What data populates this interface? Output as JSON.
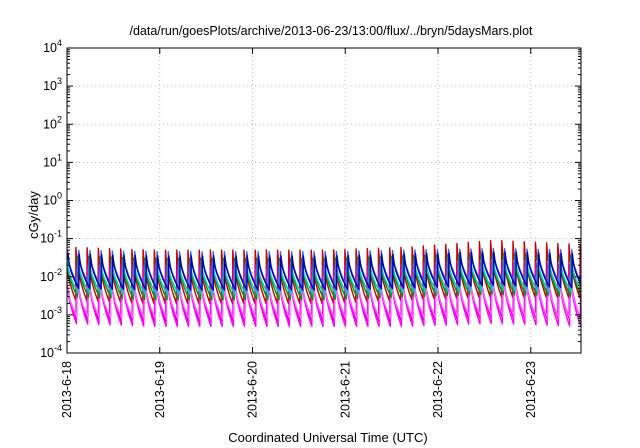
{
  "chart_data": {
    "type": "line",
    "title": "/data/run/goesPlots/archive/2013-06-23/13:00/flux/../bryn/5daysMars.plot",
    "xlabel": "Coordinated Universal Time (UTC)",
    "ylabel": "cGy/day",
    "yscale": "log",
    "ylim": [
      0.0001,
      10000
    ],
    "xlim": [
      "2013-06-18 00:00",
      "2013-06-23 13:00"
    ],
    "grid": true,
    "x_ticks": [
      "2013-6-18",
      "2013-6-19",
      "2013-6-20",
      "2013-6-21",
      "2013-6-22",
      "2013-6-23"
    ],
    "y_ticks": [
      {
        "base": "10",
        "exp": "-4",
        "value": 0.0001
      },
      {
        "base": "10",
        "exp": "-3",
        "value": 0.001
      },
      {
        "base": "10",
        "exp": "-2",
        "value": 0.01
      },
      {
        "base": "10",
        "exp": "-1",
        "value": 0.1
      },
      {
        "base": "10",
        "exp": "0",
        "value": 1
      },
      {
        "base": "10",
        "exp": "1",
        "value": 10
      },
      {
        "base": "10",
        "exp": "2",
        "value": 100
      },
      {
        "base": "10",
        "exp": "3",
        "value": 1000
      },
      {
        "base": "10",
        "exp": "4",
        "value": 10000
      }
    ],
    "sawtooth_period_hours": 2.9,
    "series": [
      {
        "color": "#cc0000",
        "peak": [
          0.06,
          0.05,
          0.05,
          0.05,
          0.06,
          0.09,
          0.07
        ],
        "trough": [
          0.0025,
          0.002,
          0.002,
          0.002,
          0.0025,
          0.003,
          0.0028
        ]
      },
      {
        "color": "#cc00cc",
        "peak": [
          0.02,
          0.02,
          0.02,
          0.02,
          0.02,
          0.025,
          0.02
        ],
        "trough": [
          0.0008,
          0.0007,
          0.0007,
          0.0007,
          0.0007,
          0.0009,
          0.0008
        ]
      },
      {
        "color": "#ff00ff",
        "peak": [
          0.015,
          0.015,
          0.015,
          0.015,
          0.015,
          0.02,
          0.015
        ],
        "trough": [
          0.0006,
          0.0005,
          0.0005,
          0.0005,
          0.0005,
          0.0006,
          0.0005
        ]
      },
      {
        "color": "#ff66ff",
        "peak": [
          0.01,
          0.01,
          0.01,
          0.01,
          0.01,
          0.012,
          0.01
        ],
        "trough": [
          0.0009,
          0.0008,
          0.0008,
          0.0008,
          0.0008,
          0.001,
          0.0008
        ]
      },
      {
        "color": "#009900",
        "peak": [
          0.035,
          0.03,
          0.03,
          0.03,
          0.035,
          0.04,
          0.035
        ],
        "trough": [
          0.003,
          0.0025,
          0.0025,
          0.0025,
          0.003,
          0.0035,
          0.003
        ]
      },
      {
        "color": "#00cccc",
        "peak": [
          0.03,
          0.025,
          0.025,
          0.025,
          0.03,
          0.035,
          0.03
        ],
        "trough": [
          0.004,
          0.0035,
          0.0035,
          0.0035,
          0.004,
          0.0045,
          0.004
        ]
      },
      {
        "color": "#2266ff",
        "peak": [
          0.05,
          0.045,
          0.045,
          0.045,
          0.05,
          0.055,
          0.05
        ],
        "trough": [
          0.006,
          0.005,
          0.005,
          0.005,
          0.006,
          0.007,
          0.006
        ]
      },
      {
        "color": "#0000aa",
        "peak": [
          0.04,
          0.035,
          0.035,
          0.035,
          0.04,
          0.045,
          0.04
        ],
        "trough": [
          0.005,
          0.0045,
          0.0045,
          0.0045,
          0.005,
          0.006,
          0.005
        ]
      }
    ]
  }
}
